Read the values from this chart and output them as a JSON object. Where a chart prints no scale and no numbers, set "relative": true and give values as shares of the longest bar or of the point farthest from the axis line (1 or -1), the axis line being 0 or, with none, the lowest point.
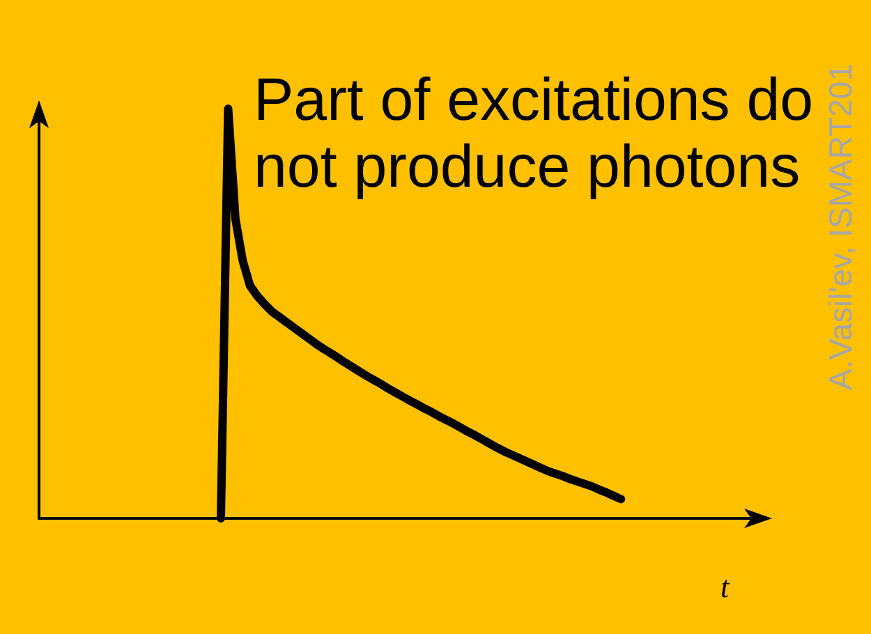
{
  "chart_data": {
    "type": "line",
    "relative": true,
    "xlabel": "t",
    "categories": [
      null,
      null,
      null,
      null,
      null,
      null,
      null,
      null,
      null,
      null,
      null,
      null,
      null,
      null,
      null,
      null,
      null,
      null,
      null,
      null,
      null,
      null,
      null,
      null,
      null,
      null,
      null,
      null,
      null,
      null,
      null,
      null,
      null,
      null,
      null,
      null,
      null,
      null,
      null,
      null,
      null,
      null,
      null,
      null,
      null,
      null,
      null,
      null,
      null,
      null,
      null,
      null,
      null,
      null,
      null,
      null,
      null,
      null,
      null,
      null,
      null,
      null,
      null,
      null,
      null,
      null,
      null,
      null,
      null,
      null,
      null,
      null,
      null,
      null,
      null,
      null,
      null,
      null,
      null,
      null,
      null,
      null,
      null,
      null,
      null,
      null,
      null,
      null,
      null,
      null,
      null,
      null,
      null,
      null,
      null,
      null,
      null,
      null,
      null,
      null,
      null
    ],
    "series": [
      {
        "color": "#000000",
        "values": [
          null,
          null,
          null,
          null,
          null,
          null,
          null,
          null,
          null,
          null,
          null,
          null,
          null,
          null,
          null,
          null,
          null,
          null,
          null,
          null,
          null,
          null,
          null,
          null,
          null,
          0,
          1,
          0.731,
          0.629,
          0.568,
          0.543,
          0.523,
          0.505,
          0.492,
          0.479,
          0.466,
          0.453,
          0.44,
          0.427,
          0.415,
          0.404,
          0.393,
          0.381,
          0.37,
          0.359,
          0.348,
          0.338,
          0.328,
          0.317,
          0.307,
          0.297,
          0.287,
          0.278,
          0.268,
          0.259,
          0.249,
          0.24,
          0.231,
          0.221,
          0.211,
          0.202,
          0.192,
          0.182,
          0.172,
          0.163,
          0.155,
          0.147,
          0.139,
          0.131,
          0.123,
          0.115,
          0.109,
          0.103,
          0.096,
          0.09,
          0.084,
          0.078,
          0.07,
          0.063,
          0.055,
          0.047,
          null,
          null,
          null,
          null,
          null,
          null,
          null,
          null,
          null,
          null,
          null,
          null,
          null,
          null,
          null,
          null,
          null,
          null,
          null,
          null
        ]
      }
    ],
    "annotations": [
      "Part of excitations do\nnot produce photons",
      "A.Vasil'ev, ISMART201"
    ]
  }
}
